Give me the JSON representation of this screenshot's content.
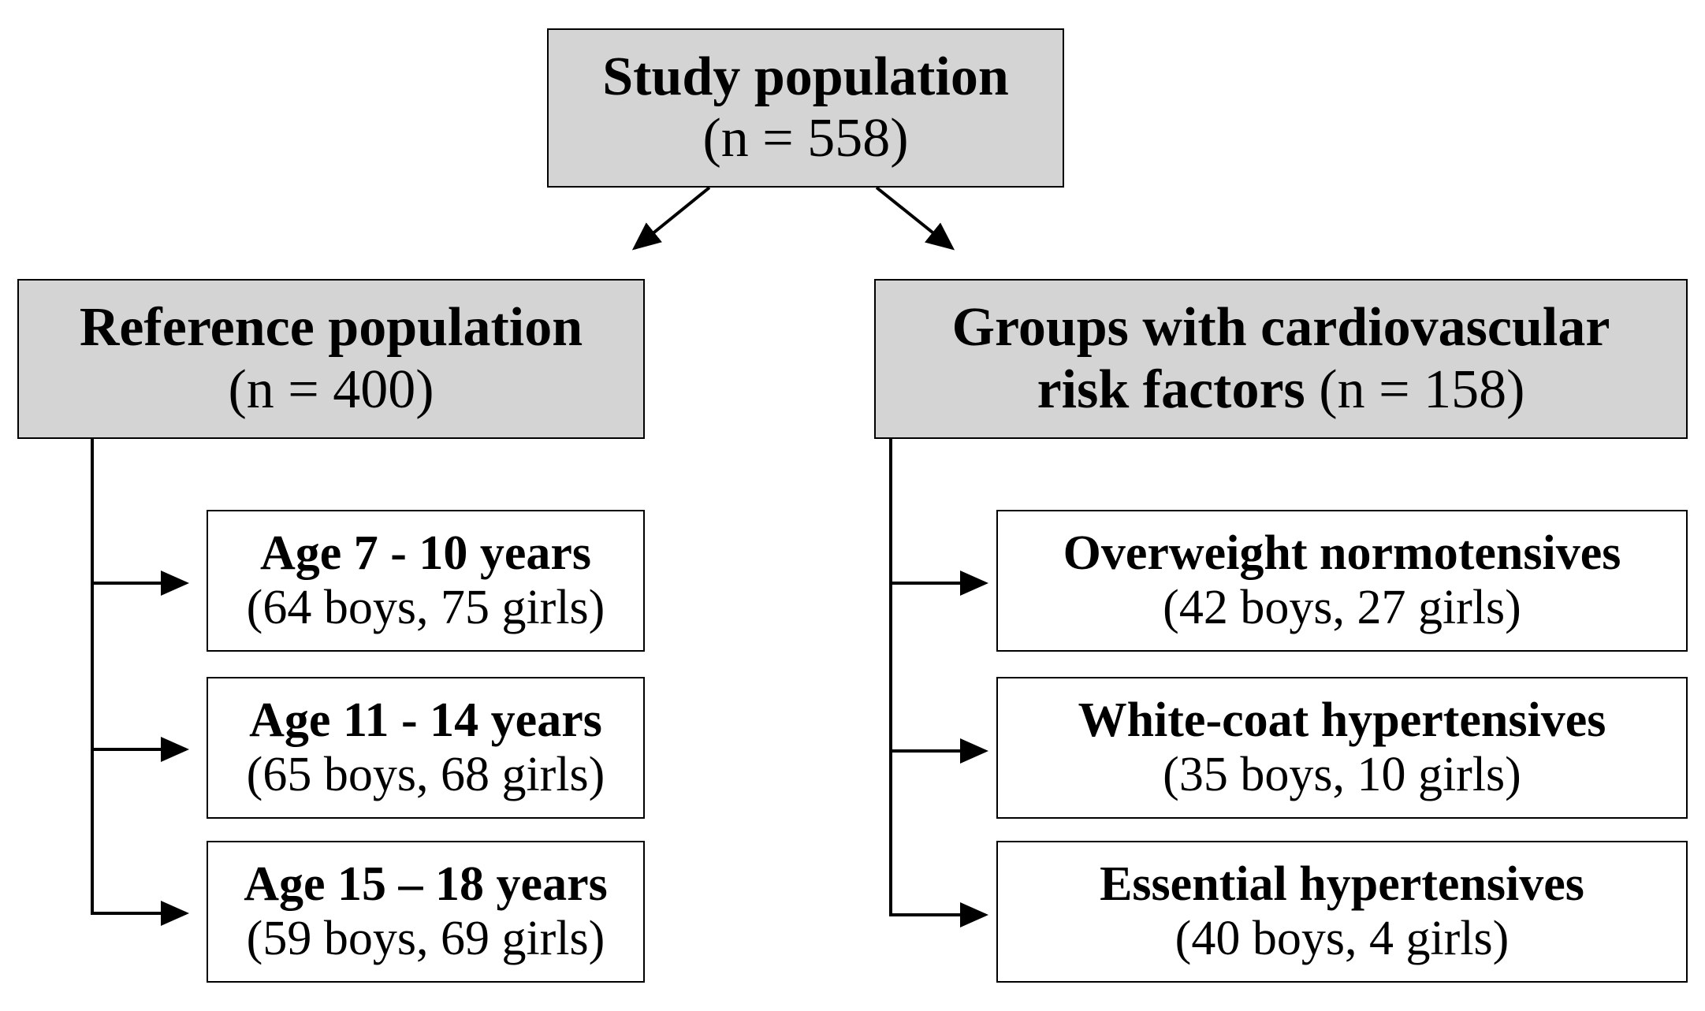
{
  "root": {
    "title": "Study population",
    "count": "(n = 558)"
  },
  "left": {
    "title": "Reference population",
    "count": "(n = 400)",
    "items": [
      {
        "title": "Age 7 - 10 years",
        "detail": "(64 boys, 75 girls)"
      },
      {
        "title": "Age 11 - 14 years",
        "detail": "(65 boys, 68 girls)"
      },
      {
        "title": "Age 15 – 18 years",
        "detail": "(59 boys, 69 girls)"
      }
    ]
  },
  "right": {
    "title_line1": "Groups with cardiovascular",
    "title_line2": "risk factors",
    "count": "(n = 158)",
    "items": [
      {
        "title": "Overweight normotensives",
        "detail": "(42 boys, 27 girls)"
      },
      {
        "title": "White-coat hypertensives",
        "detail": "(35 boys, 10 girls)"
      },
      {
        "title": "Essential hypertensives",
        "detail": "(40 boys, 4 girls)"
      }
    ]
  }
}
